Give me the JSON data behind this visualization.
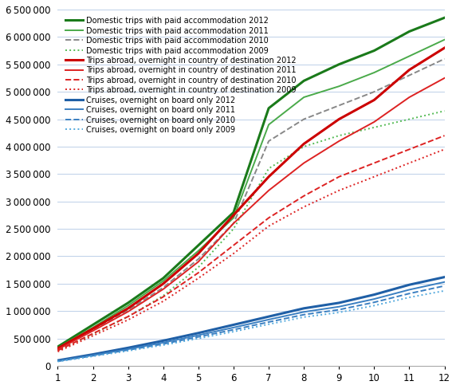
{
  "months": [
    1,
    2,
    3,
    4,
    5,
    6,
    7,
    8,
    9,
    10,
    11,
    12
  ],
  "domestic_2012": [
    350000,
    750000,
    1150000,
    1600000,
    2200000,
    2800000,
    4700000,
    5200000,
    5500000,
    5750000,
    6100000,
    6350000
  ],
  "domestic_2011": [
    330000,
    700000,
    1100000,
    1550000,
    2100000,
    2700000,
    4400000,
    4900000,
    5100000,
    5350000,
    5650000,
    5950000
  ],
  "domestic_2010": [
    310000,
    660000,
    1020000,
    1430000,
    1950000,
    2600000,
    4100000,
    4500000,
    4750000,
    5000000,
    5300000,
    5600000
  ],
  "domestic_2009": [
    280000,
    580000,
    900000,
    1280000,
    1800000,
    2500000,
    3600000,
    4000000,
    4200000,
    4350000,
    4500000,
    4650000
  ],
  "abroad_2012": [
    320000,
    680000,
    1050000,
    1500000,
    2050000,
    2750000,
    3450000,
    4050000,
    4500000,
    4850000,
    5400000,
    5800000
  ],
  "abroad_2011": [
    300000,
    640000,
    990000,
    1400000,
    1900000,
    2600000,
    3200000,
    3700000,
    4100000,
    4450000,
    4900000,
    5250000
  ],
  "abroad_2010": [
    280000,
    590000,
    900000,
    1260000,
    1700000,
    2200000,
    2700000,
    3100000,
    3450000,
    3700000,
    3950000,
    4200000
  ],
  "abroad_2009": [
    260000,
    550000,
    840000,
    1180000,
    1600000,
    2050000,
    2550000,
    2900000,
    3200000,
    3450000,
    3700000,
    3950000
  ],
  "cruise_2012": [
    100000,
    210000,
    330000,
    460000,
    600000,
    750000,
    900000,
    1050000,
    1150000,
    1300000,
    1480000,
    1620000
  ],
  "cruise_2011": [
    90000,
    195000,
    305000,
    425000,
    560000,
    700000,
    845000,
    985000,
    1080000,
    1220000,
    1390000,
    1530000
  ],
  "cruise_2010": [
    85000,
    185000,
    290000,
    400000,
    530000,
    660000,
    800000,
    935000,
    1025000,
    1160000,
    1320000,
    1460000
  ],
  "cruise_2009": [
    80000,
    175000,
    275000,
    380000,
    500000,
    625000,
    760000,
    890000,
    975000,
    1100000,
    1250000,
    1370000
  ],
  "ylim": [
    0,
    6500000
  ],
  "yticks": [
    0,
    500000,
    1000000,
    1500000,
    2000000,
    2500000,
    3000000,
    3500000,
    4000000,
    4500000,
    5000000,
    5500000,
    6000000,
    6500000
  ],
  "xlim": [
    1,
    12
  ],
  "xticks": [
    1,
    2,
    3,
    4,
    5,
    6,
    7,
    8,
    9,
    10,
    11,
    12
  ],
  "col_dark_green": "#1a7a1a",
  "col_mid_green": "#4aaa4a",
  "col_abroad_dark": "#cc0000",
  "col_abroad_mid": "#cc2222",
  "col_abroad_light": "#cc4444",
  "col_cruise_dark": "#1f5fa6",
  "col_cruise_mid": "#1f5fa6",
  "grid_color": "#bdd0e8",
  "background": "#ffffff",
  "legend_fontsize": 7.0,
  "tick_fontsize": 8.5
}
